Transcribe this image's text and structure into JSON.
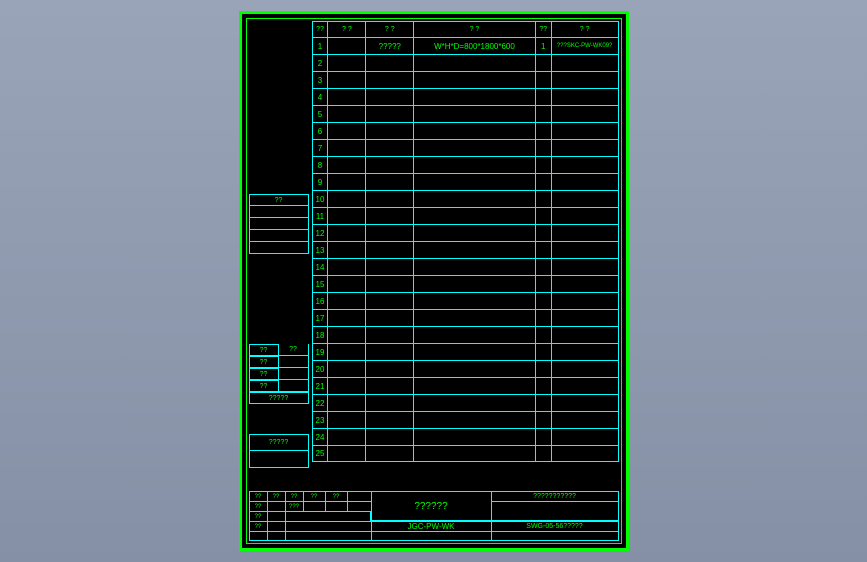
{
  "frame": {
    "border_color": "#00ff00",
    "grid_color": "#00ffff",
    "text_color": "#00ff00",
    "background": "#000000"
  },
  "main_table": {
    "header": {
      "col1": "??",
      "col2": "? ?",
      "col3": "? ?",
      "col4": "?    ?",
      "col5": "??",
      "col6": "? ?"
    },
    "rows": [
      {
        "num": "1",
        "c2": "",
        "c3": "?????",
        "c4": "W*H*D=800*1800*600",
        "c5": "1",
        "c6": "???SKC-PW-WK09?"
      },
      {
        "num": "2"
      },
      {
        "num": "3"
      },
      {
        "num": "4"
      },
      {
        "num": "5"
      },
      {
        "num": "6"
      },
      {
        "num": "7"
      },
      {
        "num": "8"
      },
      {
        "num": "9"
      },
      {
        "num": "10"
      },
      {
        "num": "11"
      },
      {
        "num": "12"
      },
      {
        "num": "13"
      },
      {
        "num": "14"
      },
      {
        "num": "15"
      },
      {
        "num": "16"
      },
      {
        "num": "17"
      },
      {
        "num": "18"
      },
      {
        "num": "19"
      },
      {
        "num": "20"
      },
      {
        "num": "21"
      },
      {
        "num": "22"
      },
      {
        "num": "23"
      },
      {
        "num": "24"
      },
      {
        "num": "25"
      }
    ]
  },
  "left_block1": {
    "top_label": "??",
    "items": [
      "",
      "",
      "",
      ""
    ]
  },
  "left_block2": {
    "rows": [
      {
        "a": "??",
        "b": "??"
      },
      {
        "a": "??",
        "b": ""
      },
      {
        "a": "??",
        "b": ""
      },
      {
        "a": "??",
        "b": ""
      }
    ],
    "footer": "?????"
  },
  "left_block3": {
    "label": "?????"
  },
  "title_block": {
    "row1": [
      "??",
      "??",
      "??",
      "??",
      "??",
      "",
      "",
      ""
    ],
    "row2": [
      "??",
      "",
      "???",
      "",
      "",
      "",
      "",
      ""
    ],
    "big_title": "??????",
    "sub_line": "???????????",
    "row4_a": "??",
    "row4_b": "",
    "code_left": "JGC-PW-WK",
    "code_right": "SWG-05-56?????",
    "row5_a": "??",
    "row5_b": ""
  }
}
